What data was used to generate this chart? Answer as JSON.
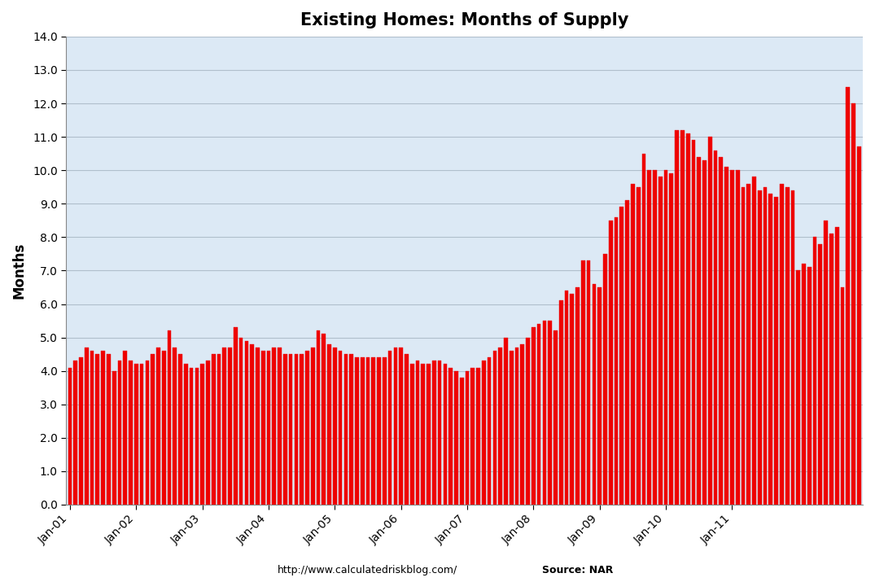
{
  "title": "Existing Homes: Months of Supply",
  "ylabel": "Months",
  "ylim": [
    0,
    14.0
  ],
  "yticks": [
    0.0,
    1.0,
    2.0,
    3.0,
    4.0,
    5.0,
    6.0,
    7.0,
    8.0,
    9.0,
    10.0,
    11.0,
    12.0,
    13.0,
    14.0
  ],
  "bar_color": "#ee0000",
  "background_color": "#dce9f5",
  "grid_color": "#b0bfcc",
  "footer_left": "http://www.calculatedriskblog.com/",
  "footer_right": "Source: NAR",
  "values": [
    4.1,
    4.3,
    4.4,
    4.7,
    4.6,
    4.5,
    4.6,
    4.5,
    4.0,
    4.3,
    4.6,
    4.3,
    4.2,
    4.2,
    4.3,
    4.5,
    4.7,
    4.6,
    5.2,
    4.7,
    4.5,
    4.2,
    4.1,
    4.1,
    4.2,
    4.3,
    4.5,
    4.5,
    4.7,
    4.7,
    5.3,
    5.0,
    4.9,
    4.8,
    4.7,
    4.6,
    4.6,
    4.7,
    4.7,
    4.5,
    4.5,
    4.5,
    4.5,
    4.6,
    4.7,
    5.2,
    5.1,
    4.8,
    4.7,
    4.6,
    4.5,
    4.5,
    4.4,
    4.4,
    4.4,
    4.4,
    4.4,
    4.4,
    4.6,
    4.7,
    4.7,
    4.5,
    4.2,
    4.3,
    4.2,
    4.2,
    4.3,
    4.3,
    4.2,
    4.1,
    4.0,
    3.8,
    4.0,
    4.1,
    4.1,
    4.3,
    4.4,
    4.6,
    4.7,
    5.0,
    4.6,
    4.7,
    4.8,
    5.0,
    5.3,
    5.4,
    5.5,
    5.5,
    5.2,
    6.1,
    6.4,
    6.3,
    6.5,
    7.3,
    7.3,
    6.6,
    6.5,
    7.5,
    8.5,
    8.6,
    8.9,
    9.1,
    9.6,
    9.5,
    10.5,
    10.0,
    10.0,
    9.8,
    10.0,
    9.9,
    11.2,
    11.2,
    11.1,
    10.9,
    10.4,
    10.3,
    11.0,
    10.6,
    10.4,
    10.1,
    10.0,
    10.0,
    9.5,
    9.6,
    9.8,
    9.4,
    9.5,
    9.3,
    9.2,
    9.6,
    9.5,
    9.4,
    7.0,
    7.2,
    7.1,
    8.0,
    7.8,
    8.5,
    8.1,
    8.3,
    6.5,
    12.5,
    12.0,
    10.7
  ],
  "x_tick_positions": [
    0,
    12,
    24,
    36,
    48,
    60,
    72,
    84,
    96,
    108,
    120
  ],
  "x_tick_labels": [
    "Jan-01",
    "Jan-02",
    "Jan-03",
    "Jan-04",
    "Jan-05",
    "Jan-06",
    "Jan-07",
    "Jan-08",
    "Jan-09",
    "Jan-10",
    "Jan-11"
  ]
}
